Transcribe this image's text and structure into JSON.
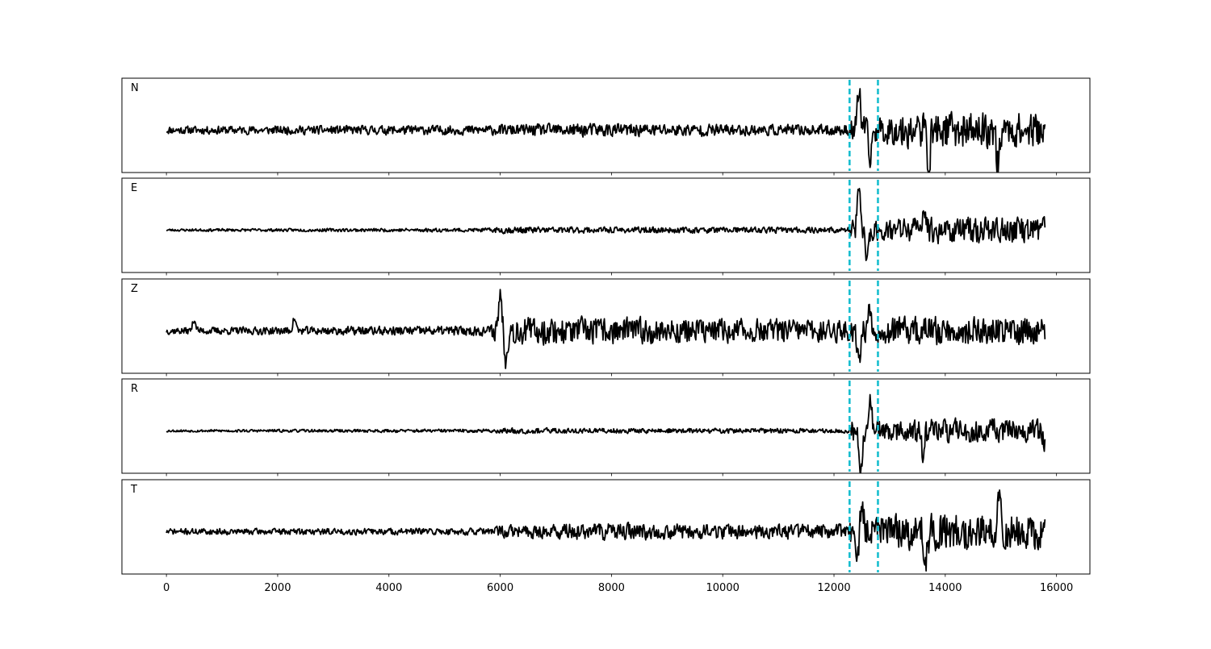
{
  "chart_data": {
    "type": "line",
    "title": "",
    "xlabel": "",
    "ylabel": "",
    "xlim": [
      -800,
      16600
    ],
    "x_ticks": [
      0,
      2000,
      4000,
      6000,
      8000,
      10000,
      12000,
      14000,
      16000
    ],
    "x_tick_labels": [
      "0",
      "2000",
      "4000",
      "6000",
      "8000",
      "10000",
      "12000",
      "14000",
      "16000"
    ],
    "grid": false,
    "legend": "none",
    "y_ticks_shown": false,
    "sample_range": [
      0,
      15800
    ],
    "markers": {
      "style": "dashed",
      "color": "#17becf",
      "x": [
        12280,
        12790
      ]
    },
    "series_color": "#000000",
    "panels": [
      {
        "label": "N",
        "seed": 11,
        "profile": [
          [
            0,
            0.16
          ],
          [
            5800,
            0.2
          ],
          [
            7500,
            0.28
          ],
          [
            9000,
            0.26
          ],
          [
            11000,
            0.22
          ],
          [
            12280,
            0.22
          ],
          [
            12300,
            0.55
          ],
          [
            12790,
            0.55
          ],
          [
            13500,
            0.75
          ],
          [
            15800,
            0.7
          ]
        ],
        "spikes": [
          [
            12450,
            0.95
          ],
          [
            12650,
            -0.7
          ],
          [
            13700,
            -0.9
          ],
          [
            14950,
            -0.85
          ]
        ]
      },
      {
        "label": "E",
        "seed": 23,
        "profile": [
          [
            0,
            0.05
          ],
          [
            5800,
            0.08
          ],
          [
            6000,
            0.14
          ],
          [
            8000,
            0.12
          ],
          [
            11000,
            0.12
          ],
          [
            12280,
            0.12
          ],
          [
            12300,
            0.5
          ],
          [
            12790,
            0.45
          ],
          [
            13500,
            0.55
          ],
          [
            15800,
            0.5
          ]
        ],
        "spikes": [
          [
            12450,
            0.95
          ],
          [
            12600,
            -0.75
          ],
          [
            13620,
            0.6
          ],
          [
            15780,
            0.3
          ]
        ]
      },
      {
        "label": "Z",
        "seed": 37,
        "profile": [
          [
            0,
            0.14
          ],
          [
            5800,
            0.2
          ],
          [
            5950,
            0.55
          ],
          [
            8000,
            0.55
          ],
          [
            10000,
            0.5
          ],
          [
            12000,
            0.45
          ],
          [
            12280,
            0.45
          ],
          [
            12790,
            0.6
          ],
          [
            15800,
            0.55
          ]
        ],
        "spikes": [
          [
            500,
            0.28
          ],
          [
            2300,
            0.3
          ],
          [
            6000,
            0.95
          ],
          [
            6100,
            -0.6
          ],
          [
            12450,
            -0.7
          ],
          [
            12650,
            0.6
          ]
        ]
      },
      {
        "label": "R",
        "seed": 53,
        "profile": [
          [
            0,
            0.05
          ],
          [
            5800,
            0.07
          ],
          [
            6000,
            0.12
          ],
          [
            8000,
            0.1
          ],
          [
            11000,
            0.1
          ],
          [
            12280,
            0.1
          ],
          [
            12300,
            0.45
          ],
          [
            12790,
            0.45
          ],
          [
            13500,
            0.5
          ],
          [
            15800,
            0.45
          ]
        ],
        "spikes": [
          [
            12480,
            -0.95
          ],
          [
            12650,
            0.75
          ],
          [
            13600,
            -0.6
          ],
          [
            15790,
            -0.25
          ]
        ]
      },
      {
        "label": "T",
        "seed": 71,
        "profile": [
          [
            0,
            0.12
          ],
          [
            5800,
            0.14
          ],
          [
            6000,
            0.25
          ],
          [
            7500,
            0.35
          ],
          [
            9000,
            0.32
          ],
          [
            11000,
            0.3
          ],
          [
            12280,
            0.3
          ],
          [
            12300,
            0.55
          ],
          [
            12790,
            0.65
          ],
          [
            13500,
            0.75
          ],
          [
            15800,
            0.7
          ]
        ],
        "spikes": [
          [
            12420,
            -0.8
          ],
          [
            12500,
            0.75
          ],
          [
            13650,
            -0.7
          ],
          [
            14980,
            0.95
          ]
        ]
      }
    ]
  }
}
